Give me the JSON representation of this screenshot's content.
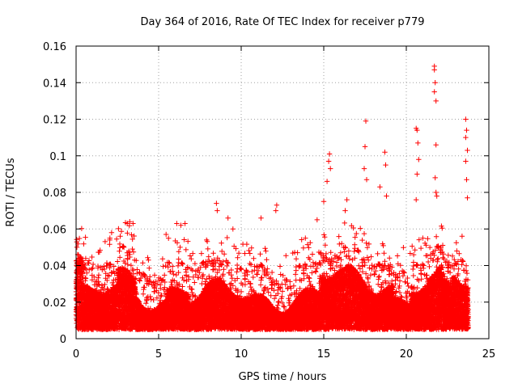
{
  "chart_data": {
    "type": "scatter",
    "title": "Day 364 of 2016, Rate Of TEC Index for receiver p779",
    "xlabel": "GPS time / hours",
    "ylabel": "ROTI / TECUs",
    "xlim": [
      0,
      25
    ],
    "ylim": [
      0,
      0.16
    ],
    "x_ticks": [
      0,
      5,
      10,
      15,
      20,
      25
    ],
    "x_tick_labels": [
      "0",
      "5",
      "10",
      "15",
      "20",
      "25"
    ],
    "y_ticks": [
      0,
      0.02,
      0.04,
      0.06,
      0.08,
      0.1,
      0.12,
      0.14,
      0.16
    ],
    "y_tick_labels": [
      "0",
      "0.02",
      "0.04",
      "0.06",
      "0.08",
      "0.1",
      "0.12",
      "0.14",
      "0.16"
    ],
    "grid": true,
    "marker": "+",
    "series": [
      {
        "name": "p779",
        "color": "#ff0000",
        "x_range": [
          0,
          23.75
        ],
        "sample_interval_hours": 0.0083,
        "typical_range": [
          0.005,
          0.035
        ],
        "outliers": [
          {
            "x": 0.05,
            "y": 0.05
          },
          {
            "x": 0.1,
            "y": 0.046
          },
          {
            "x": 0.15,
            "y": 0.044
          },
          {
            "x": 2.05,
            "y": 0.055
          },
          {
            "x": 2.15,
            "y": 0.058
          },
          {
            "x": 3.1,
            "y": 0.063
          },
          {
            "x": 3.25,
            "y": 0.064
          },
          {
            "x": 3.45,
            "y": 0.063
          },
          {
            "x": 5.45,
            "y": 0.057
          },
          {
            "x": 6.1,
            "y": 0.063
          },
          {
            "x": 6.35,
            "y": 0.062
          },
          {
            "x": 6.6,
            "y": 0.063
          },
          {
            "x": 8.5,
            "y": 0.074
          },
          {
            "x": 8.55,
            "y": 0.07
          },
          {
            "x": 9.2,
            "y": 0.066
          },
          {
            "x": 9.5,
            "y": 0.06
          },
          {
            "x": 11.2,
            "y": 0.066
          },
          {
            "x": 12.15,
            "y": 0.073
          },
          {
            "x": 12.1,
            "y": 0.07
          },
          {
            "x": 14.6,
            "y": 0.065
          },
          {
            "x": 15.0,
            "y": 0.075
          },
          {
            "x": 15.2,
            "y": 0.086
          },
          {
            "x": 15.3,
            "y": 0.097
          },
          {
            "x": 15.35,
            "y": 0.101
          },
          {
            "x": 15.4,
            "y": 0.093
          },
          {
            "x": 16.3,
            "y": 0.07
          },
          {
            "x": 16.4,
            "y": 0.076
          },
          {
            "x": 17.55,
            "y": 0.119
          },
          {
            "x": 17.5,
            "y": 0.105
          },
          {
            "x": 17.45,
            "y": 0.093
          },
          {
            "x": 17.6,
            "y": 0.087
          },
          {
            "x": 18.4,
            "y": 0.083
          },
          {
            "x": 18.7,
            "y": 0.102
          },
          {
            "x": 18.75,
            "y": 0.095
          },
          {
            "x": 18.8,
            "y": 0.078
          },
          {
            "x": 20.6,
            "y": 0.115
          },
          {
            "x": 20.65,
            "y": 0.114
          },
          {
            "x": 20.7,
            "y": 0.107
          },
          {
            "x": 20.75,
            "y": 0.098
          },
          {
            "x": 20.65,
            "y": 0.09
          },
          {
            "x": 20.6,
            "y": 0.076
          },
          {
            "x": 21.7,
            "y": 0.149
          },
          {
            "x": 21.7,
            "y": 0.147
          },
          {
            "x": 21.75,
            "y": 0.14
          },
          {
            "x": 21.7,
            "y": 0.135
          },
          {
            "x": 21.8,
            "y": 0.13
          },
          {
            "x": 21.8,
            "y": 0.106
          },
          {
            "x": 21.75,
            "y": 0.088
          },
          {
            "x": 21.8,
            "y": 0.08
          },
          {
            "x": 21.85,
            "y": 0.078
          },
          {
            "x": 23.6,
            "y": 0.12
          },
          {
            "x": 23.65,
            "y": 0.114
          },
          {
            "x": 23.6,
            "y": 0.11
          },
          {
            "x": 23.7,
            "y": 0.103
          },
          {
            "x": 23.6,
            "y": 0.097
          },
          {
            "x": 23.65,
            "y": 0.087
          },
          {
            "x": 23.7,
            "y": 0.077
          }
        ]
      }
    ]
  }
}
